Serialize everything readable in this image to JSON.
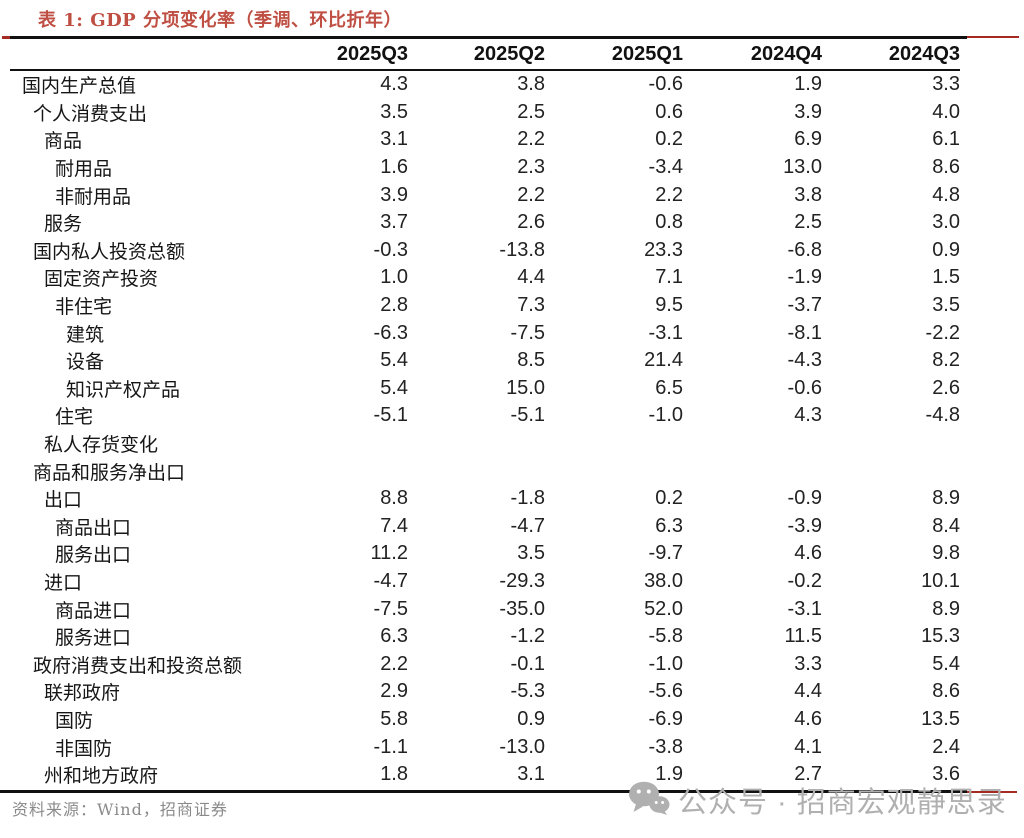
{
  "title": "表 1: GDP 分项变化率（季调、环比折年）",
  "source_note": "资料来源：Wind，招商证券",
  "watermark": {
    "icon": "wechat-icon",
    "text": "公众号 · 招商宏观静思录"
  },
  "colors": {
    "title_red": "#bf4f43",
    "rule_red": "#a52a22",
    "rule_black": "#111111",
    "watermark_gray": "#b0b0b0"
  },
  "table": {
    "columns": [
      "2025Q3",
      "2025Q2",
      "2025Q1",
      "2024Q4",
      "2024Q3"
    ],
    "rows": [
      {
        "label": "国内生产总值",
        "indent": 0,
        "values": [
          "4.3",
          "3.8",
          "-0.6",
          "1.9",
          "3.3"
        ]
      },
      {
        "label": "个人消费支出",
        "indent": 1,
        "values": [
          "3.5",
          "2.5",
          "0.6",
          "3.9",
          "4.0"
        ]
      },
      {
        "label": "商品",
        "indent": 2,
        "values": [
          "3.1",
          "2.2",
          "0.2",
          "6.9",
          "6.1"
        ]
      },
      {
        "label": "耐用品",
        "indent": 3,
        "values": [
          "1.6",
          "2.3",
          "-3.4",
          "13.0",
          "8.6"
        ]
      },
      {
        "label": "非耐用品",
        "indent": 3,
        "values": [
          "3.9",
          "2.2",
          "2.2",
          "3.8",
          "4.8"
        ]
      },
      {
        "label": "服务",
        "indent": 2,
        "values": [
          "3.7",
          "2.6",
          "0.8",
          "2.5",
          "3.0"
        ]
      },
      {
        "label": "国内私人投资总额",
        "indent": 1,
        "values": [
          "-0.3",
          "-13.8",
          "23.3",
          "-6.8",
          "0.9"
        ]
      },
      {
        "label": "固定资产投资",
        "indent": 2,
        "values": [
          "1.0",
          "4.4",
          "7.1",
          "-1.9",
          "1.5"
        ]
      },
      {
        "label": "非住宅",
        "indent": 3,
        "values": [
          "2.8",
          "7.3",
          "9.5",
          "-3.7",
          "3.5"
        ]
      },
      {
        "label": "建筑",
        "indent": 4,
        "values": [
          "-6.3",
          "-7.5",
          "-3.1",
          "-8.1",
          "-2.2"
        ]
      },
      {
        "label": "设备",
        "indent": 4,
        "values": [
          "5.4",
          "8.5",
          "21.4",
          "-4.3",
          "8.2"
        ]
      },
      {
        "label": "知识产权产品",
        "indent": 4,
        "values": [
          "5.4",
          "15.0",
          "6.5",
          "-0.6",
          "2.6"
        ]
      },
      {
        "label": "住宅",
        "indent": 3,
        "values": [
          "-5.1",
          "-5.1",
          "-1.0",
          "4.3",
          "-4.8"
        ]
      },
      {
        "label": "私人存货变化",
        "indent": 2,
        "values": [
          "",
          "",
          "",
          "",
          ""
        ]
      },
      {
        "label": "商品和服务净出口",
        "indent": 1,
        "values": [
          "",
          "",
          "",
          "",
          ""
        ]
      },
      {
        "label": "出口",
        "indent": 2,
        "values": [
          "8.8",
          "-1.8",
          "0.2",
          "-0.9",
          "8.9"
        ]
      },
      {
        "label": "商品出口",
        "indent": 3,
        "values": [
          "7.4",
          "-4.7",
          "6.3",
          "-3.9",
          "8.4"
        ]
      },
      {
        "label": "服务出口",
        "indent": 3,
        "values": [
          "11.2",
          "3.5",
          "-9.7",
          "4.6",
          "9.8"
        ]
      },
      {
        "label": "进口",
        "indent": 2,
        "values": [
          "-4.7",
          "-29.3",
          "38.0",
          "-0.2",
          "10.1"
        ]
      },
      {
        "label": "商品进口",
        "indent": 3,
        "values": [
          "-7.5",
          "-35.0",
          "52.0",
          "-3.1",
          "8.9"
        ]
      },
      {
        "label": "服务进口",
        "indent": 3,
        "values": [
          "6.3",
          "-1.2",
          "-5.8",
          "11.5",
          "15.3"
        ]
      },
      {
        "label": "政府消费支出和投资总额",
        "indent": 1,
        "values": [
          "2.2",
          "-0.1",
          "-1.0",
          "3.3",
          "5.4"
        ]
      },
      {
        "label": "联邦政府",
        "indent": 2,
        "values": [
          "2.9",
          "-5.3",
          "-5.6",
          "4.4",
          "8.6"
        ]
      },
      {
        "label": "国防",
        "indent": 3,
        "values": [
          "5.8",
          "0.9",
          "-6.9",
          "4.6",
          "13.5"
        ]
      },
      {
        "label": "非国防",
        "indent": 3,
        "values": [
          "-1.1",
          "-13.0",
          "-3.8",
          "4.1",
          "2.4"
        ]
      },
      {
        "label": "州和地方政府",
        "indent": 2,
        "values": [
          "1.8",
          "3.1",
          "1.9",
          "2.7",
          "3.6"
        ]
      }
    ]
  }
}
